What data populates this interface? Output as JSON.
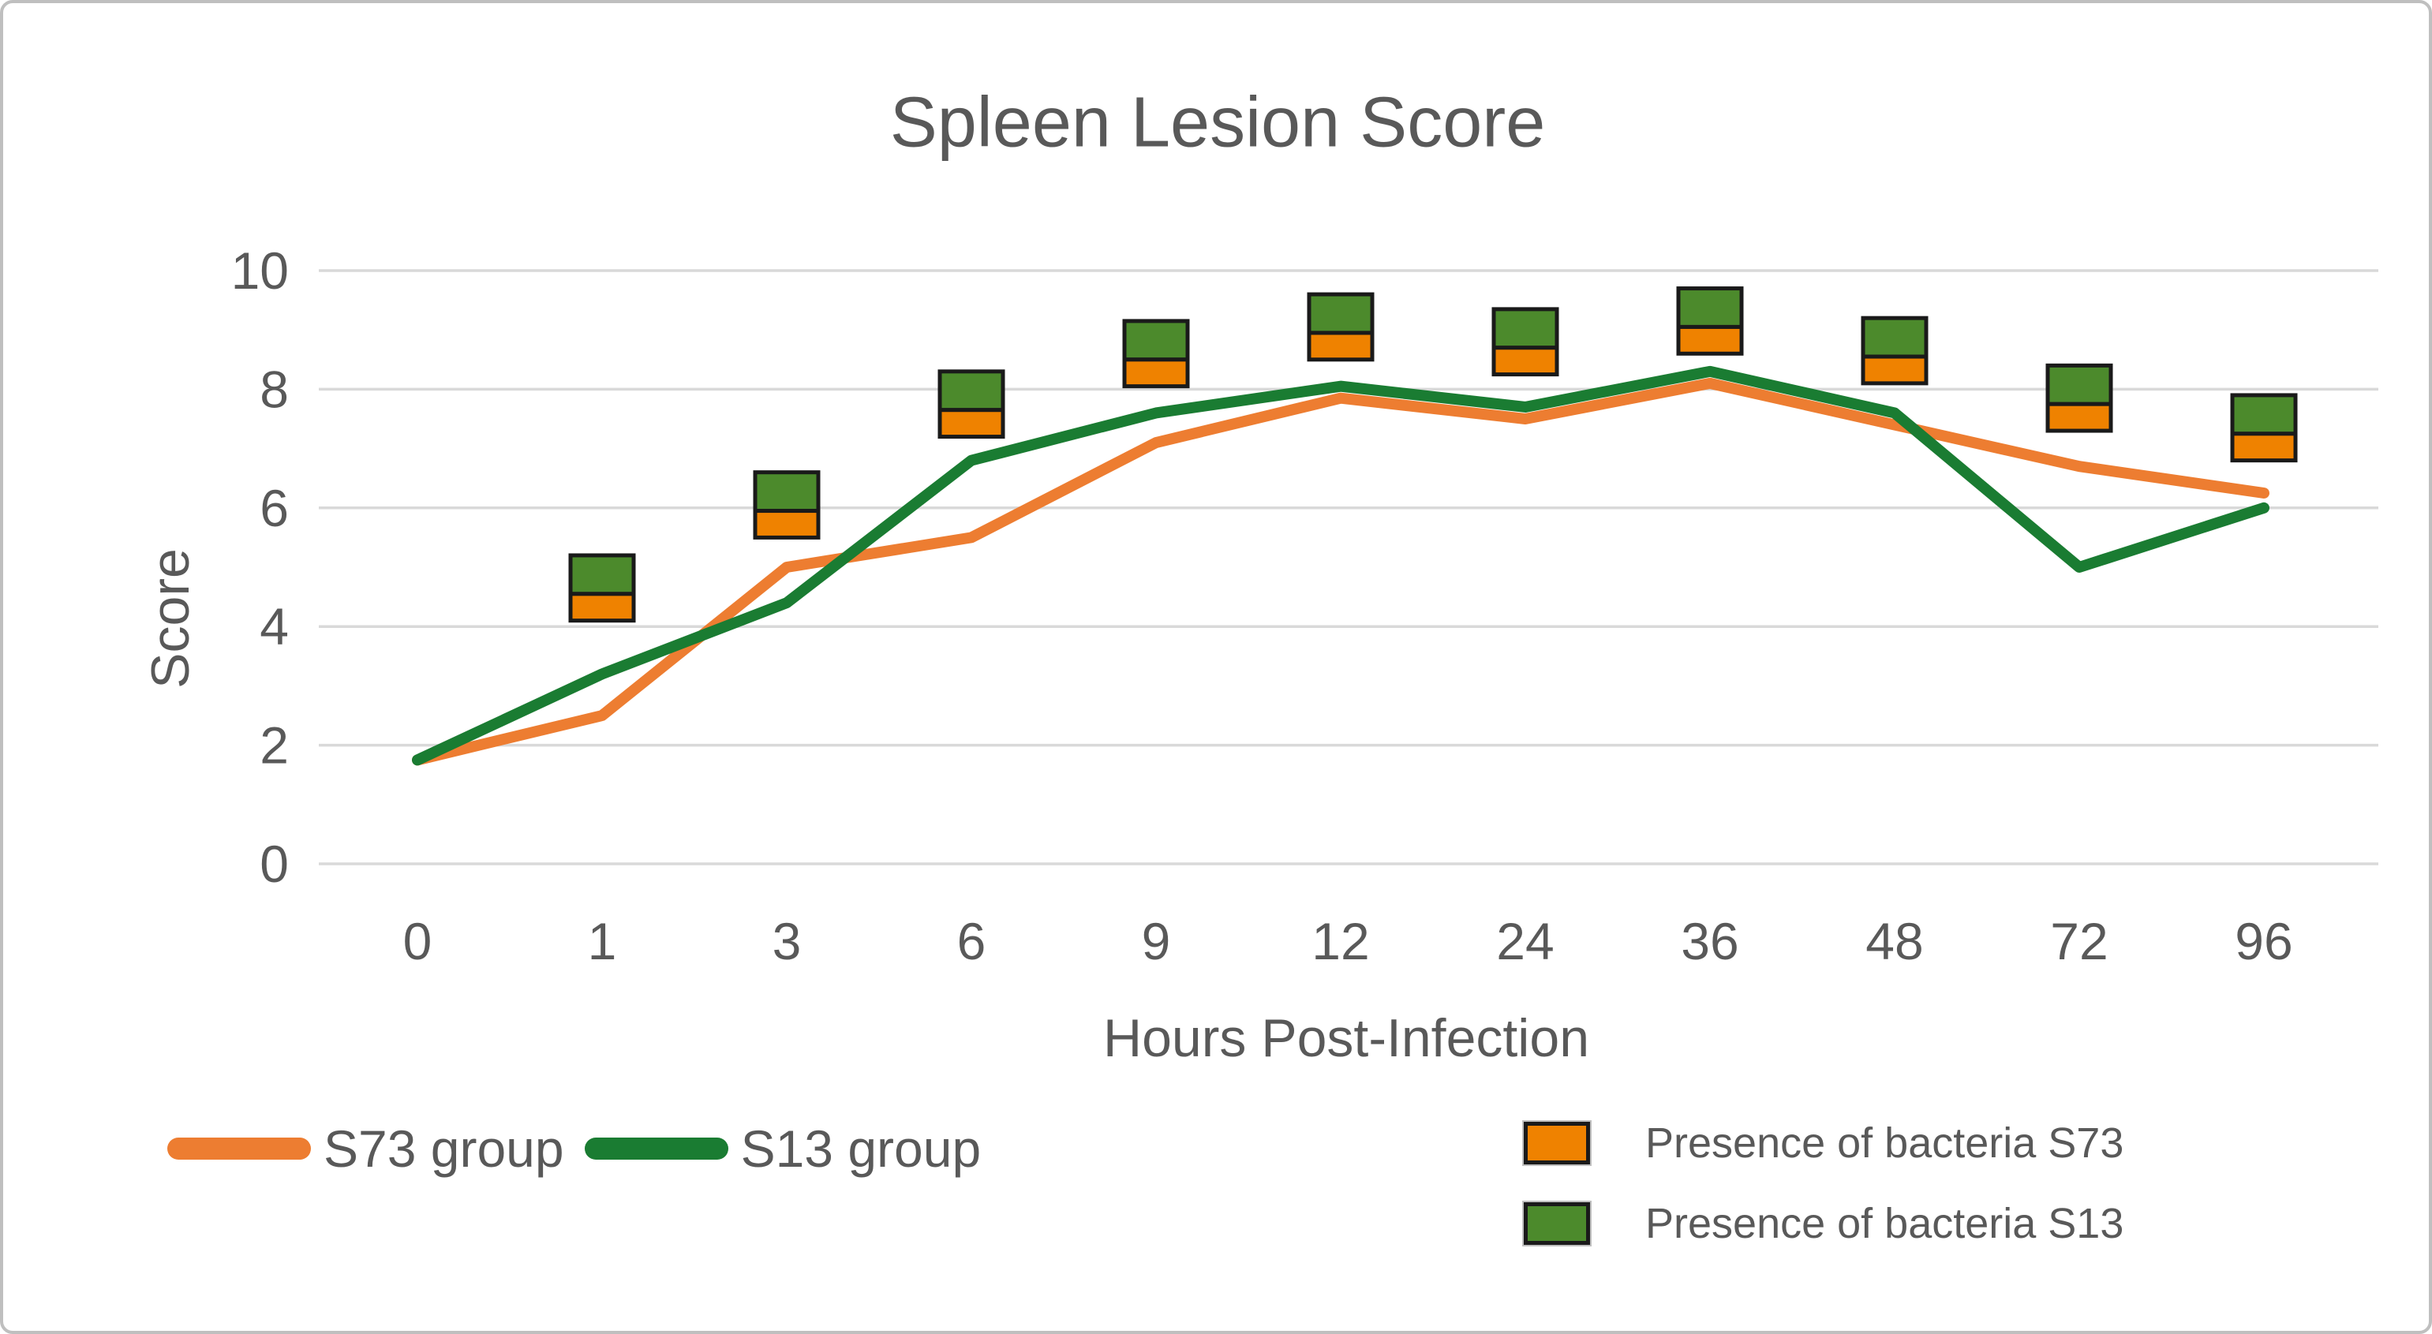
{
  "page": {
    "background_color": "#ffffff",
    "frame_border_color": "#bfbfbf"
  },
  "chart_data": {
    "type": "line",
    "title": "Spleen Lesion Score",
    "xlabel": "Hours Post-Infection",
    "ylabel": "Score",
    "categories": [
      "0",
      "1",
      "3",
      "6",
      "9",
      "12",
      "24",
      "36",
      "48",
      "72",
      "96"
    ],
    "y_ticks": [
      0,
      2,
      4,
      6,
      8,
      10
    ],
    "ylim": [
      0,
      10
    ],
    "grid": true,
    "gridline_color": "#d9d9d9",
    "text_color": "#595959",
    "legend_position": "bottom",
    "series": [
      {
        "name": "S73 group",
        "color": "#ED7D31",
        "values": [
          1.75,
          2.5,
          5.0,
          5.5,
          7.1,
          7.85,
          7.5,
          8.1,
          7.4,
          6.7,
          6.25
        ]
      },
      {
        "name": "S13 group",
        "color": "#1A7C32",
        "values": [
          1.75,
          3.2,
          4.4,
          6.8,
          7.6,
          8.05,
          7.7,
          8.3,
          7.6,
          5.0,
          6.0
        ]
      }
    ],
    "presence_markers": {
      "description": "Stacked orange (bottom) and green (top) boxes drawn above the curves at each timepoint",
      "orange_label": "Presence of bacteria S73",
      "green_label": "Presence of bacteria S13",
      "orange_color": "#EF8200",
      "green_color": "#4C8A2C",
      "border_color": "#1a1a1a",
      "orange_segment_height": 0.45,
      "green_segment_height": 0.65,
      "items": [
        {
          "category": "1",
          "bottom": 4.1
        },
        {
          "category": "3",
          "bottom": 5.5
        },
        {
          "category": "6",
          "bottom": 7.2
        },
        {
          "category": "9",
          "bottom": 8.05
        },
        {
          "category": "12",
          "bottom": 8.5
        },
        {
          "category": "24",
          "bottom": 8.25
        },
        {
          "category": "36",
          "bottom": 8.6
        },
        {
          "category": "48",
          "bottom": 8.1
        },
        {
          "category": "72",
          "bottom": 7.3
        },
        {
          "category": "96",
          "bottom": 6.8
        }
      ]
    }
  }
}
